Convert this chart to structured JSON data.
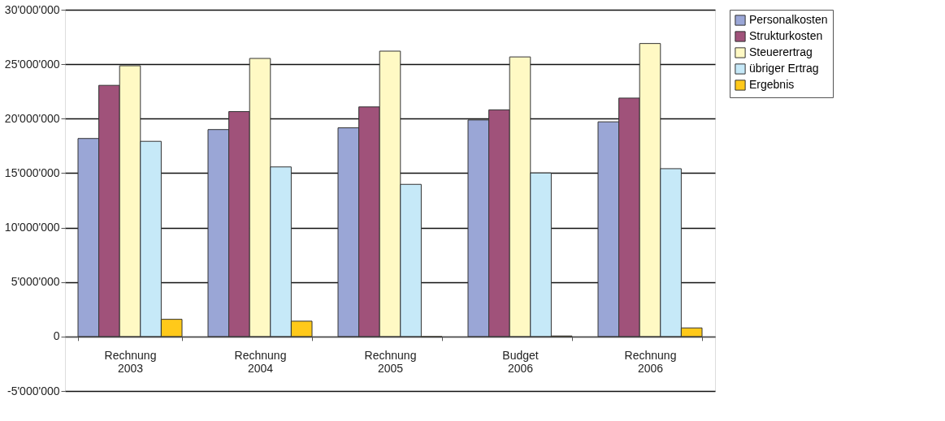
{
  "chart_data": {
    "type": "bar",
    "categories": [
      "Rechnung 2003",
      "Rechnung 2004",
      "Rechnung 2005",
      "Budget 2006",
      "Rechnung 2006"
    ],
    "series": [
      {
        "name": "Personalkosten",
        "color": "#9aa6d6",
        "values": [
          18180000,
          19000000,
          19160000,
          19880000,
          19710000
        ]
      },
      {
        "name": "Strukturkosten",
        "color": "#a0527a",
        "values": [
          23060000,
          20650000,
          21080000,
          20810000,
          21890000
        ]
      },
      {
        "name": "Steuerertrag",
        "color": "#fff9c4",
        "values": [
          24860000,
          25530000,
          26200000,
          25670000,
          26900000
        ]
      },
      {
        "name": "übriger Ertrag",
        "color": "#c6e9f8",
        "values": [
          17920000,
          15570000,
          13970000,
          15020000,
          15410000
        ]
      },
      {
        "name": "Ergebnis",
        "color": "#ffc91a",
        "values": [
          1580000,
          1410000,
          -50000,
          50000,
          790000
        ]
      }
    ],
    "ylim": [
      -5000000,
      30000000
    ],
    "yticks": [
      {
        "value": -5000000,
        "label": "-5'000'000"
      },
      0,
      {
        "value": 5000000,
        "label": "5'000'000"
      },
      {
        "value": 10000000,
        "label": "10'000'000"
      },
      {
        "value": 15000000,
        "label": "15'000'000"
      },
      {
        "value": 20000000,
        "label": "20'000'000"
      },
      {
        "value": 25000000,
        "label": "25'000'000"
      },
      {
        "value": 30000000,
        "label": "30'000'000"
      }
    ],
    "grid": "y",
    "legend": "right"
  }
}
